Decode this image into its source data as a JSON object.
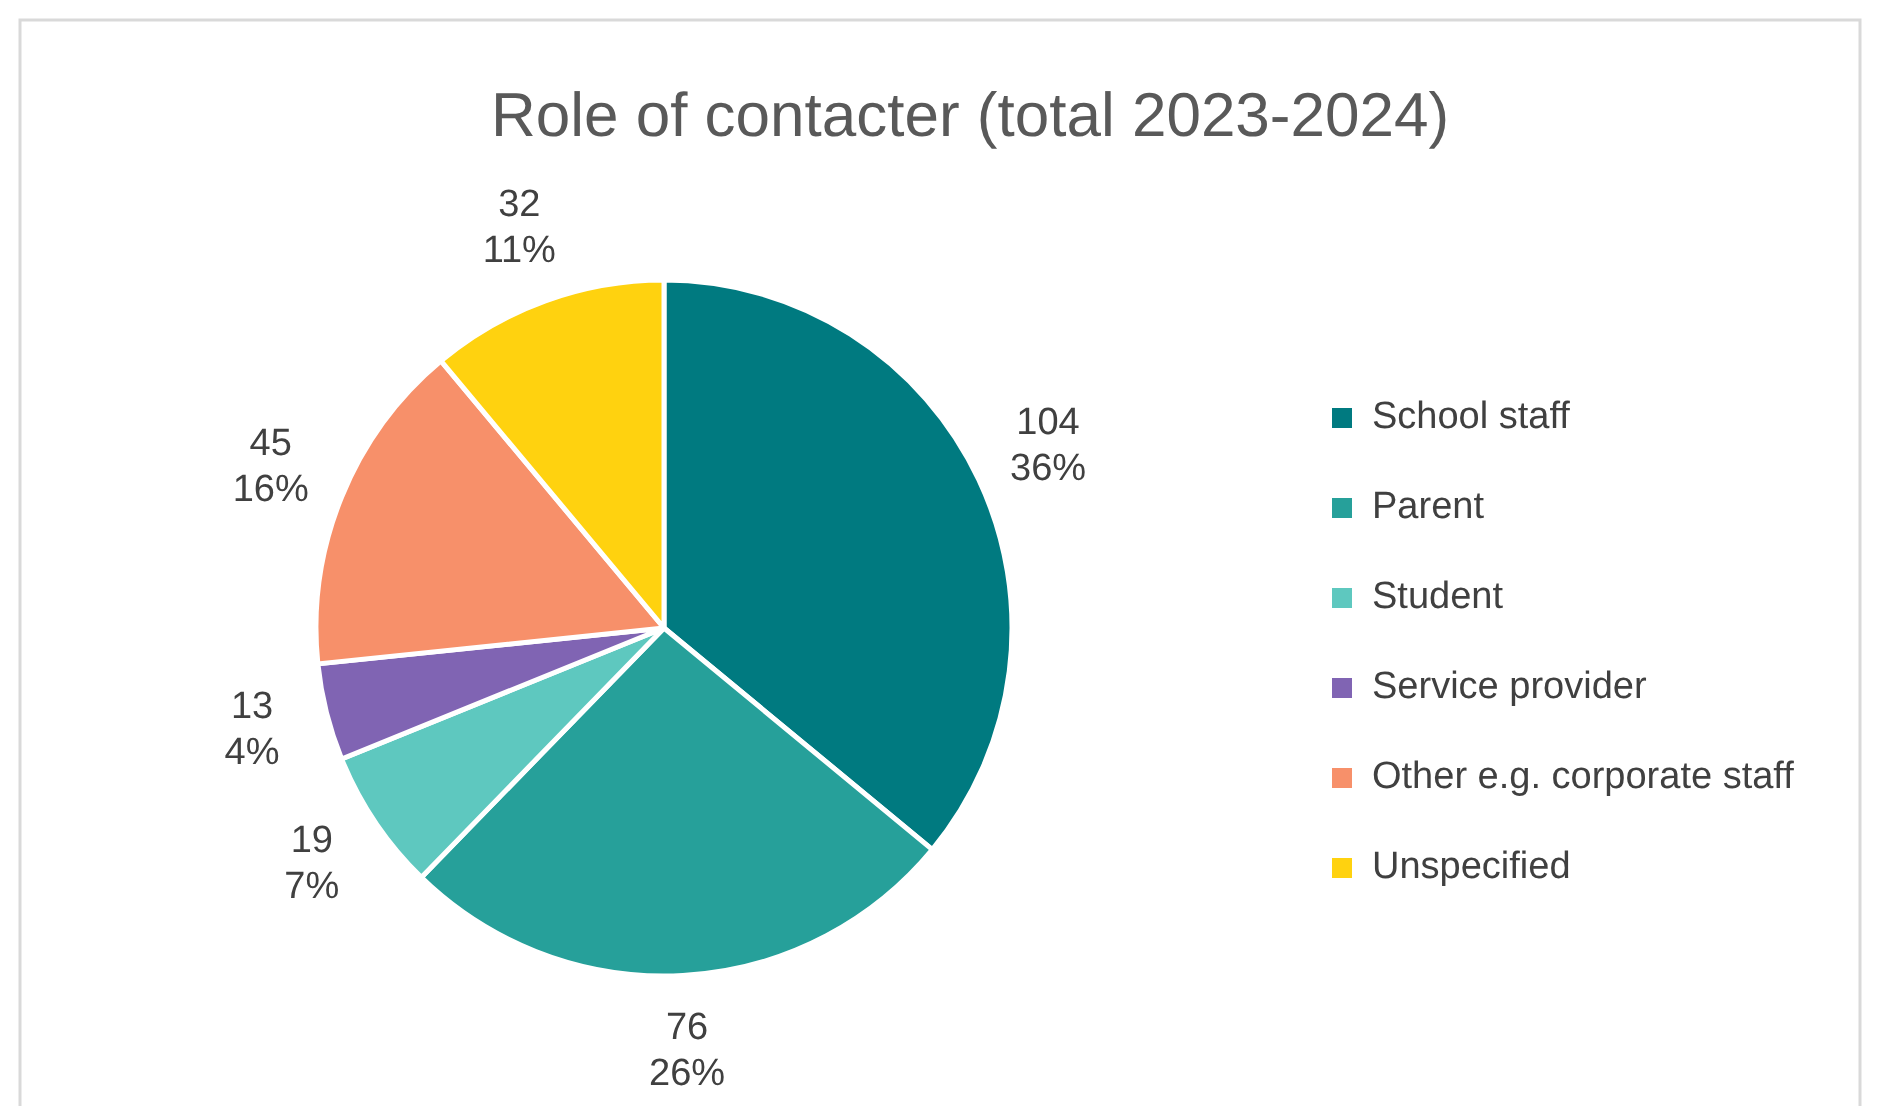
{
  "chart_data": {
    "type": "pie",
    "title": "Role of contacter (total 2023-2024)",
    "categories": [
      "School staff",
      "Parent",
      "Student",
      "Service provider",
      "Other e.g. corporate staff",
      "Unspecified"
    ],
    "values": [
      104,
      76,
      19,
      13,
      45,
      32
    ],
    "value_labels": [
      "104\n36%",
      "76\n26%",
      "19\n7%",
      "13\n4%",
      "45\n16%",
      "32\n11%"
    ],
    "colors": [
      "#007a80",
      "#26a09a",
      "#5ec8bf",
      "#8064b3",
      "#f7906a",
      "#ffd20f"
    ],
    "legend": "right"
  }
}
